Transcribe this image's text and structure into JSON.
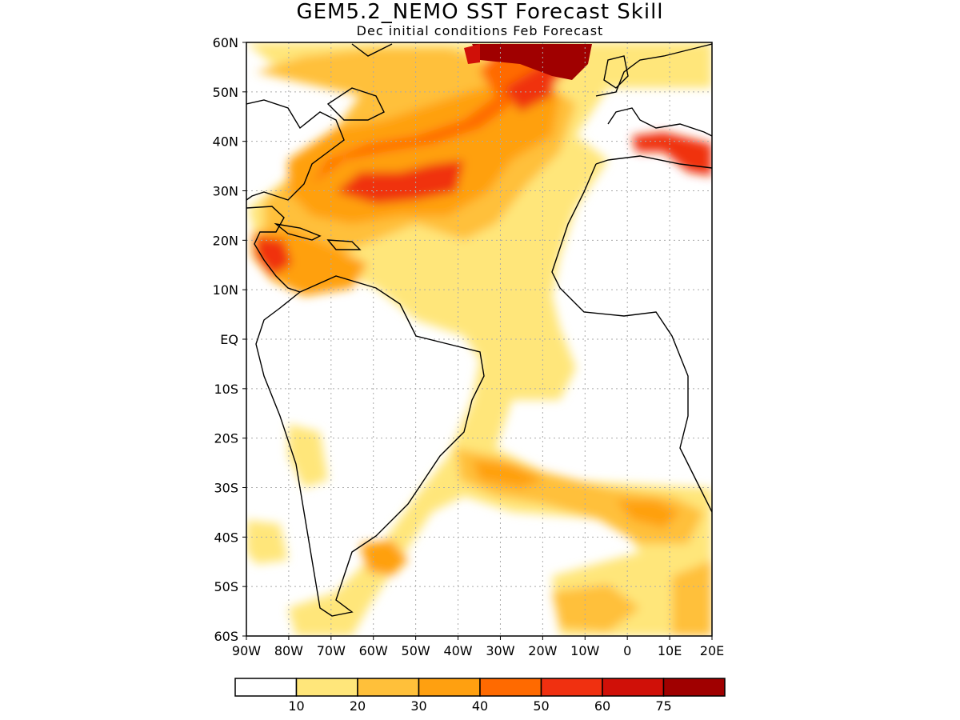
{
  "title": "GEM5.2_NEMO SST Forecast Skill",
  "subtitle": "Dec initial conditions  Feb Forecast",
  "map": {
    "lon_range": [
      -90,
      20
    ],
    "lat_range": [
      -60,
      60
    ],
    "lat_labels": [
      "60N",
      "50N",
      "40N",
      "30N",
      "20N",
      "10N",
      "EQ",
      "10S",
      "20S",
      "30S",
      "40S",
      "50S",
      "60S"
    ],
    "lon_labels": [
      "90W",
      "80W",
      "70W",
      "60W",
      "50W",
      "40W",
      "30W",
      "20W",
      "10W",
      "0",
      "10E",
      "20E"
    ]
  },
  "colorbar": {
    "colors": [
      "#ffffff",
      "#ffe67a",
      "#ffc03a",
      "#ffa010",
      "#ff6a00",
      "#f03010",
      "#d01008",
      "#a00000"
    ],
    "labels": [
      "10",
      "20",
      "30",
      "40",
      "50",
      "60",
      "75"
    ]
  },
  "chart_data": {
    "type": "heatmap",
    "title": "GEM5.2_NEMO SST Forecast Skill",
    "subtitle": "Dec initial conditions  Feb Forecast",
    "x_range": [
      -90,
      20
    ],
    "y_range": [
      -60,
      60
    ],
    "levels": [
      10,
      20,
      30,
      40,
      50,
      60,
      75
    ]
  }
}
